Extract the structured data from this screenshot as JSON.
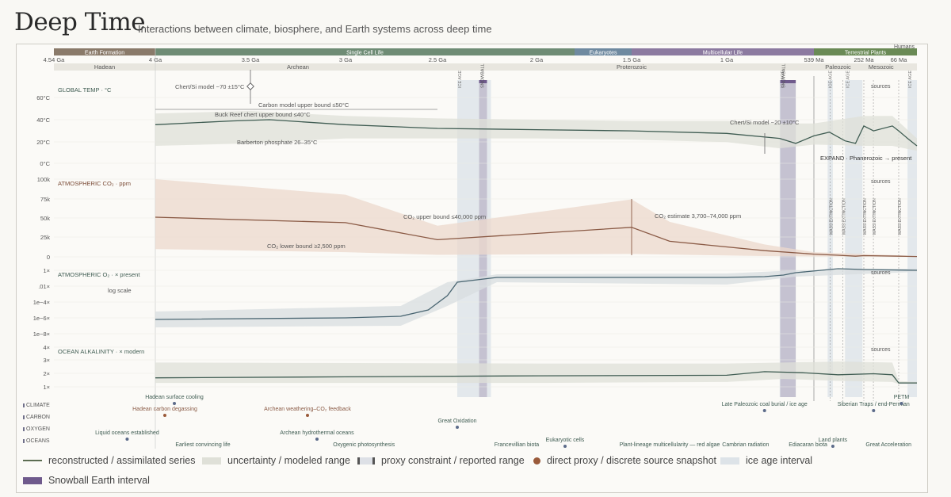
{
  "header": {
    "title": "Deep Time",
    "subtitle": "Interactions between climate, biosphere, and Earth systems across deep time"
  },
  "colors": {
    "series": "#3f5c52",
    "band": "#dfe0d8",
    "co2": "#8a5a45",
    "co2_band": "#ecd8cc",
    "o2": "#4a6672",
    "ice": "#dde3e8",
    "snowball": "#8c7aa0",
    "dot_blue": "#5c6b8a",
    "dot_brown": "#9a5a3a"
  },
  "chart_data": {
    "type": "line",
    "x_unit": "Ma (log-like time axis)",
    "top_bar_labels": {
      "humans": "Humans"
    },
    "eras": [
      {
        "label": "Earth Formation",
        "start": 4540,
        "end": 4000,
        "color": "#8a7a6a"
      },
      {
        "label": "Single Cell Life",
        "start": 4000,
        "end": 1800,
        "color": "#6f8c75"
      },
      {
        "label": "Eukaryotes",
        "start": 1800,
        "end": 1500,
        "color": "#6f8aa0"
      },
      {
        "label": "Multicellular Life",
        "start": 1500,
        "end": 539,
        "color": "#8c7aa0"
      },
      {
        "label": "Terrestrial Plants",
        "start": 539,
        "end": 0,
        "color": "#6a8a55"
      }
    ],
    "ticks": [
      {
        "t": 4540,
        "label": "4.54 Ga"
      },
      {
        "t": 4000,
        "label": "4 Ga"
      },
      {
        "t": 3500,
        "label": "3.5 Ga"
      },
      {
        "t": 3000,
        "label": "3 Ga"
      },
      {
        "t": 2500,
        "label": "2.5 Ga"
      },
      {
        "t": 2000,
        "label": "2 Ga"
      },
      {
        "t": 1500,
        "label": "1.5 Ga"
      },
      {
        "t": 1000,
        "label": "1 Ga"
      },
      {
        "t": 539,
        "label": "539 Ma"
      },
      {
        "t": 252,
        "label": "252 Ma"
      },
      {
        "t": 66,
        "label": "66 Ma"
      }
    ],
    "eons": [
      {
        "label": "Hadean",
        "t": 4270
      },
      {
        "label": "Archean",
        "t": 3250
      },
      {
        "label": "Proterozoic",
        "t": 1500
      },
      {
        "label": "Paleozoic",
        "t": 400
      },
      {
        "label": "Mesozoic",
        "t": 160
      }
    ],
    "ice_ages": [
      {
        "start": 2400,
        "end": 2230,
        "label": "ICE AGE"
      },
      {
        "start": 720,
        "end": 635,
        "label": "ICE AGE"
      },
      {
        "start": 460,
        "end": 430,
        "label": "ICE AGE"
      },
      {
        "start": 360,
        "end": 260,
        "label": "ICE AGE"
      },
      {
        "start": 34,
        "end": 0,
        "label": "ICE AGE"
      }
    ],
    "snowballs": [
      {
        "start": 2290,
        "end": 2250,
        "label": "SNOWBALL"
      },
      {
        "start": 717,
        "end": 635,
        "label": "SNOWBALL"
      }
    ],
    "mass_extinctions": [
      445,
      372,
      252,
      201,
      66
    ],
    "mass_extinction_label": "MASS EXTINCTION",
    "panels": {
      "temp": {
        "label": "GLOBAL TEMP · °C",
        "yticks": [
          "60°C",
          "40°C",
          "20°C",
          "0°C"
        ],
        "ylim": [
          0,
          70
        ],
        "series": [
          [
            4000,
            31
          ],
          [
            3600,
            34
          ],
          [
            3400,
            35
          ],
          [
            3000,
            31
          ],
          [
            2500,
            28
          ],
          [
            2000,
            27
          ],
          [
            1500,
            26
          ],
          [
            1000,
            24
          ],
          [
            720,
            20
          ],
          [
            635,
            16
          ],
          [
            539,
            22
          ],
          [
            450,
            25
          ],
          [
            360,
            18
          ],
          [
            300,
            16
          ],
          [
            252,
            30
          ],
          [
            200,
            26
          ],
          [
            100,
            30
          ],
          [
            66,
            26
          ],
          [
            34,
            20
          ],
          [
            0,
            14
          ]
        ],
        "band_hi": [
          [
            4000,
            40
          ],
          [
            3500,
            42
          ],
          [
            3000,
            38
          ],
          [
            2500,
            36
          ],
          [
            2000,
            35
          ],
          [
            1500,
            34
          ],
          [
            1000,
            34
          ],
          [
            720,
            32
          ],
          [
            539,
            32
          ],
          [
            252,
            38
          ],
          [
            100,
            38
          ],
          [
            0,
            20
          ]
        ],
        "band_lo": [
          [
            4000,
            14
          ],
          [
            3500,
            16
          ],
          [
            3000,
            20
          ],
          [
            2500,
            20
          ],
          [
            2000,
            20
          ],
          [
            1500,
            19
          ],
          [
            1000,
            17
          ],
          [
            720,
            12
          ],
          [
            539,
            15
          ],
          [
            252,
            14
          ],
          [
            100,
            14
          ],
          [
            0,
            10
          ]
        ],
        "annotations": [
          {
            "text": "Chert/Si model ~70 ±15°C",
            "t": 3500,
            "v": 70
          },
          {
            "text": "Carbon model upper bound ≤50°C",
            "t": 3000,
            "v": 50
          },
          {
            "text": "Buck Reef chert upper bound ≤40°C",
            "t": 3350,
            "v": 40
          },
          {
            "text": "Barberton phosphate 26–35°C",
            "t": 3200,
            "v": 26
          },
          {
            "text": "Chert/Si model ~20 ±10°C",
            "t": 700,
            "v": 28
          }
        ],
        "sources": "sources",
        "expand": "EXPAND · Phanerozoic → present"
      },
      "co2": {
        "label": "ATMOSPHERIC CO₂ · ppm",
        "yticks": [
          "100k",
          "75k",
          "50k",
          "25k",
          "0"
        ],
        "ylim": [
          0,
          100000
        ],
        "series": [
          [
            4000,
            51000
          ],
          [
            3000,
            44000
          ],
          [
            2500,
            22000
          ],
          [
            1500,
            38000
          ],
          [
            1300,
            20000
          ],
          [
            800,
            8000
          ],
          [
            539,
            3500
          ],
          [
            400,
            2000
          ],
          [
            300,
            800
          ],
          [
            252,
            1500
          ],
          [
            66,
            800
          ],
          [
            0,
            400
          ]
        ],
        "band_hi": [
          [
            4000,
            100000
          ],
          [
            3000,
            80000
          ],
          [
            2500,
            40000
          ],
          [
            1500,
            74000
          ],
          [
            1300,
            45000
          ],
          [
            800,
            16000
          ],
          [
            539,
            6000
          ],
          [
            0,
            1000
          ]
        ],
        "band_lo": [
          [
            4000,
            10000
          ],
          [
            3000,
            6000
          ],
          [
            2500,
            2500
          ],
          [
            1500,
            3700
          ],
          [
            800,
            1000
          ],
          [
            539,
            500
          ],
          [
            0,
            200
          ]
        ],
        "annotations": [
          {
            "text": "CO₂ upper bound ≤40,000 ppm",
            "t": 2500,
            "v": 40000
          },
          {
            "text": "CO₂ lower bound ≥2,500 ppm",
            "t": 3250,
            "v": 2500
          },
          {
            "text": "CO₂ estimate 3,700–74,000 ppm",
            "t": 1500,
            "v": 74000
          }
        ],
        "sources": "sources"
      },
      "o2": {
        "label": "ATMOSPHERIC O₂ · × present",
        "sublabel": "log scale",
        "yticks": [
          "1×",
          ".01×",
          "1e−4×",
          "1e−6×",
          "1e−8×"
        ],
        "series": [
          [
            4000,
            -6.2
          ],
          [
            3000,
            -6.0
          ],
          [
            2700,
            -5.8
          ],
          [
            2550,
            -5.0
          ],
          [
            2450,
            -3.2
          ],
          [
            2400,
            -1.5
          ],
          [
            2200,
            -0.9
          ],
          [
            1800,
            -0.9
          ],
          [
            1000,
            -0.9
          ],
          [
            800,
            -0.8
          ],
          [
            700,
            -0.6
          ],
          [
            635,
            -0.3
          ],
          [
            400,
            0.2
          ],
          [
            252,
            0.1
          ],
          [
            0,
            0
          ]
        ],
        "band_hi": [
          [
            4000,
            -5.2
          ],
          [
            2700,
            -4.5
          ],
          [
            2450,
            -1.5
          ],
          [
            2200,
            -0.5
          ],
          [
            1000,
            -0.4
          ],
          [
            635,
            0
          ],
          [
            0,
            0.2
          ]
        ],
        "band_lo": [
          [
            4000,
            -7.2
          ],
          [
            2700,
            -7.0
          ],
          [
            2450,
            -4.5
          ],
          [
            2200,
            -1.5
          ],
          [
            1000,
            -1.8
          ],
          [
            635,
            -0.8
          ],
          [
            0,
            -0.2
          ]
        ],
        "sources": "sources"
      },
      "alk": {
        "label": "OCEAN ALKALINITY · × modern",
        "yticks": [
          "4×",
          "3×",
          "2×",
          "1×"
        ],
        "series": [
          [
            4000,
            1.5
          ],
          [
            3000,
            1.6
          ],
          [
            2000,
            1.7
          ],
          [
            1000,
            1.75
          ],
          [
            800,
            2.1
          ],
          [
            600,
            2.0
          ],
          [
            400,
            1.8
          ],
          [
            200,
            1.9
          ],
          [
            100,
            1.8
          ],
          [
            66,
            1.0
          ],
          [
            0,
            1.0
          ]
        ],
        "band_hi": [
          [
            4000,
            3.0
          ],
          [
            2000,
            2.9
          ],
          [
            1000,
            2.9
          ],
          [
            700,
            3.0
          ],
          [
            400,
            3.1
          ],
          [
            100,
            3.0
          ],
          [
            66,
            1.2
          ],
          [
            0,
            1.1
          ]
        ],
        "band_lo": [
          [
            4000,
            1.0
          ],
          [
            2000,
            1.0
          ],
          [
            1000,
            1.1
          ],
          [
            700,
            1.4
          ],
          [
            400,
            1.2
          ],
          [
            100,
            1.1
          ],
          [
            66,
            0.9
          ],
          [
            0,
            0.9
          ]
        ],
        "sources": "sources"
      }
    },
    "event_rows": [
      "CLIMATE",
      "CARBON",
      "OXYGEN",
      "OCEANS"
    ],
    "events": [
      {
        "text": "Hadean surface cooling",
        "t": 3900,
        "row": 0
      },
      {
        "text": "Hadean carbon degassing",
        "t": 3950,
        "row": 1
      },
      {
        "text": "Archean weathering–CO₂ feedback",
        "t": 3200,
        "row": 1
      },
      {
        "text": "Great Oxidation",
        "t": 2400,
        "row": 2
      },
      {
        "text": "Liquid oceans established",
        "t": 4150,
        "row": 3
      },
      {
        "text": "Archean hydrothermal oceans",
        "t": 3150,
        "row": 3
      },
      {
        "text": "Earliest convincing life",
        "t": 3750,
        "row": 4
      },
      {
        "text": "Oxygenic photosynthesis",
        "t": 2900,
        "row": 4
      },
      {
        "text": "Francevillian biota",
        "t": 2100,
        "row": 4
      },
      {
        "text": "Eukaryotic cells",
        "t": 1850,
        "row": 3.6
      },
      {
        "text": "Plant-lineage multicellularity — red algae",
        "t": 1300,
        "row": 4
      },
      {
        "text": "Cambrian radiation",
        "t": 900,
        "row": 4
      },
      {
        "text": "Ediacaran biota",
        "t": 570,
        "row": 4
      },
      {
        "text": "Late Paleozoic coal burial / ice age",
        "t": 800,
        "row": 0.6
      },
      {
        "text": "Land plants",
        "t": 430,
        "row": 3.6
      },
      {
        "text": "Siberian Traps / end-Permian",
        "t": 200,
        "row": 0.6
      },
      {
        "text": "PETM",
        "t": 56,
        "row": 0
      },
      {
        "text": "Great Acceleration",
        "t": 120,
        "row": 4
      }
    ]
  },
  "legend": {
    "items": [
      "reconstructed / assimilated series",
      "uncertainty / modeled range",
      "proxy constraint / reported range",
      "direct proxy / discrete source snapshot",
      "ice age interval",
      "Snowball Earth interval"
    ]
  }
}
